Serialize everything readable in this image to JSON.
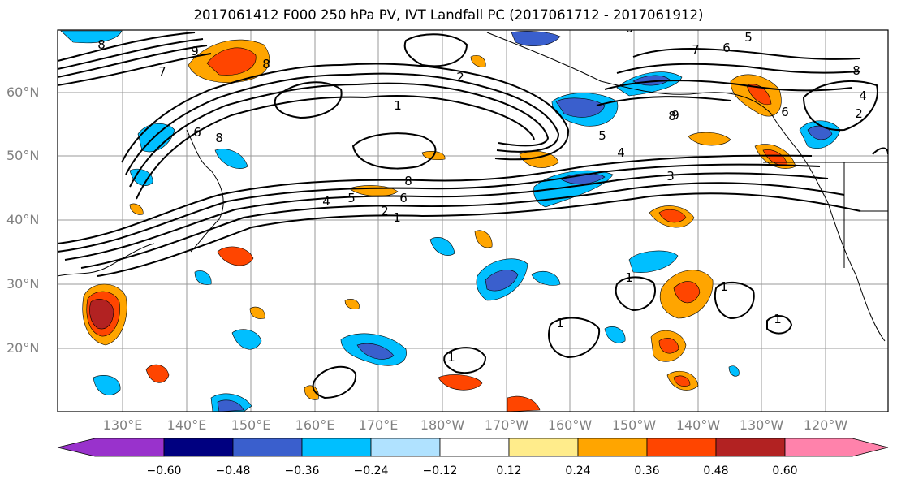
{
  "title": "2017061412 F000 250 hPa PV, IVT Landfall PC (2017061712 - 2017061912)",
  "map": {
    "lat_labels": [
      "60°N",
      "50°N",
      "40°N",
      "30°N",
      "20°N"
    ],
    "lon_labels": [
      "130°E",
      "140°E",
      "150°E",
      "160°E",
      "170°E",
      "180°W",
      "170°W",
      "160°W",
      "150°W",
      "140°W",
      "130°W",
      "120°W"
    ],
    "contour_labels": [
      "8",
      "7",
      "9",
      "8",
      "2",
      "1",
      "6",
      "8",
      "7",
      "6",
      "8",
      "4",
      "2",
      "6",
      "5",
      "4",
      "3",
      "4",
      "5",
      "6",
      "2",
      "1",
      "8",
      "1",
      "1",
      "1",
      "1",
      "1",
      "9",
      "6",
      "5",
      "8"
    ]
  },
  "colorbar": {
    "colors": [
      "#9932CC",
      "#000080",
      "#3A5FCD",
      "#00BFFF",
      "#B0E2FF",
      "#FFFFFF",
      "#FFEC8B",
      "#FFA500",
      "#FF4500",
      "#B22222",
      "#FF82AB"
    ],
    "tick_labels": [
      "−0.60",
      "−0.48",
      "−0.36",
      "−0.24",
      "−0.12",
      "0.12",
      "0.24",
      "0.36",
      "0.48",
      "0.60"
    ]
  }
}
